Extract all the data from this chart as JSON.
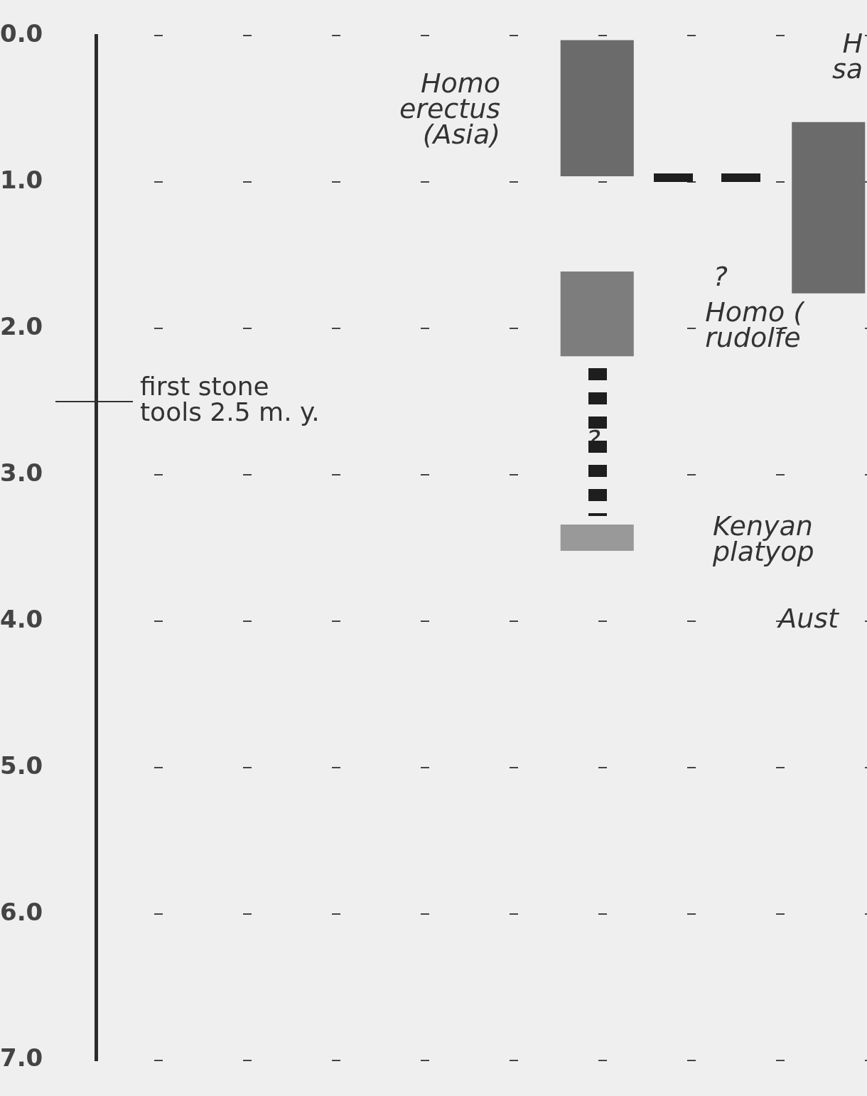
{
  "chart_data": {
    "type": "bar",
    "categories": [
      null,
      null,
      null,
      null,
      null,
      null,
      null,
      null,
      null,
      null
    ],
    "series": [
      {
        "color": "#6b6b6b",
        "base": [
          null,
          null,
          null,
          null,
          null,
          null,
          0.03,
          null,
          null,
          0.59
        ],
        "values": [
          null,
          null,
          null,
          null,
          null,
          null,
          0.93,
          null,
          null,
          1.17
        ]
      },
      {
        "color": "#7d7d7d",
        "base": [
          null,
          null,
          null,
          null,
          null,
          null,
          1.61,
          null,
          null,
          null
        ],
        "values": [
          null,
          null,
          null,
          null,
          null,
          null,
          0.58,
          null,
          null,
          null
        ]
      },
      {
        "color": "#999999",
        "base": [
          null,
          null,
          null,
          null,
          null,
          null,
          3.34,
          null,
          null,
          null
        ],
        "values": [
          null,
          null,
          null,
          null,
          null,
          null,
          0.18,
          null,
          null,
          null
        ]
      }
    ],
    "ylim": [
      7.0,
      0.0
    ],
    "yticks": [
      {
        "value": 0,
        "label": "0.0"
      },
      {
        "value": 1,
        "label": "1.0"
      },
      {
        "value": 2,
        "label": "2.0"
      },
      {
        "value": 3,
        "label": "3.0"
      },
      {
        "value": 4,
        "label": "4.0"
      },
      {
        "value": 5,
        "label": "5.0"
      },
      {
        "value": 6,
        "label": "6.0"
      },
      {
        "value": 7,
        "label": "7.0"
      }
    ],
    "grid": "y",
    "legend": false,
    "tick_labels": "y",
    "ref_lines": [
      {
        "axis": "y",
        "value": 2.5,
        "label": "first stone\ntools 2.5 m. y."
      }
    ],
    "annotations": [
      "Homo\nerectus\n(Asia)",
      "H\nsa",
      "?",
      "Homo (\nrudolfe",
      "?",
      "Kenyan\nplatyop",
      "Aust"
    ]
  }
}
